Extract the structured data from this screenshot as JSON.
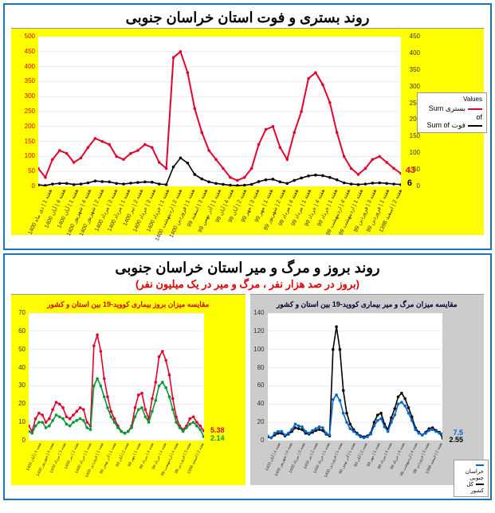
{
  "top_chart": {
    "title": "روند بستری و فوت استان خراسان جنوبی",
    "type": "line",
    "background_color": "#ffff00",
    "plot_bg": "#ffffff",
    "border_color": "#1a75bc",
    "grid_color": "#dddddd",
    "y_left": {
      "min": 0,
      "max": 500,
      "step": 50,
      "color": "#d00000"
    },
    "y_right": {
      "min": 0,
      "max": 450,
      "step": 50,
      "color": "#333333"
    },
    "series": {
      "hospitalized": {
        "label": "بستری Sum of",
        "color": "#e4002b",
        "end_value": 43,
        "values": [
          60,
          30,
          90,
          120,
          110,
          80,
          95,
          130,
          160,
          150,
          140,
          100,
          90,
          110,
          120,
          140,
          130,
          80,
          60,
          430,
          450,
          380,
          260,
          180,
          120,
          90,
          60,
          30,
          20,
          30,
          60,
          140,
          190,
          200,
          130,
          90,
          180,
          250,
          360,
          380,
          340,
          280,
          180,
          100,
          60,
          40,
          60,
          90,
          100,
          80,
          60,
          43
        ]
      },
      "deaths": {
        "label": "فوت Sum of",
        "color": "#000000",
        "end_value": 6,
        "values": [
          5,
          3,
          8,
          10,
          10,
          6,
          8,
          12,
          18,
          16,
          15,
          10,
          8,
          11,
          13,
          15,
          14,
          8,
          6,
          65,
          95,
          78,
          40,
          25,
          15,
          10,
          7,
          4,
          3,
          4,
          7,
          16,
          22,
          24,
          15,
          10,
          20,
          28,
          35,
          38,
          36,
          30,
          22,
          12,
          8,
          6,
          8,
          11,
          12,
          10,
          8,
          6
        ]
      }
    },
    "x_labels": [
      "هفته 2 | اسفند 1398",
      "هفته 1 | فروردین 99",
      "هفته 3 | فروردین 99",
      "هفته 1 | اردیبهشت 99",
      "هفته 4 | اردیبهشت 99",
      "هفته 1 | خرداد 99",
      "هفته 4 | خرداد 99",
      "هفته 1 | مرداد 99",
      "هفته 4 | مرداد 99",
      "هفته 2 | شهریور 99",
      "هفته 1 | مهر 99",
      "هفته 3 | مهر 99",
      "هفته 2 | آبان 99",
      "هفته 4 | آبان 99",
      "هفته 1 | آذر بهمن 99",
      "هفته 3 | اسفند 99",
      "هفته 1 | فروردین 1400",
      "هفته 2 | اردیبهشت 1400",
      "هفته 1 | خرداد 1400",
      "هفته 3 | خرداد 1400",
      "هفته 2 | تیر 1400",
      "هفته 1 | مرداد 1400",
      "هفته 3 | مرداد 1400",
      "هفته 2 | شهریور 1400",
      "هفته 4 | شهریور 1400",
      "هفته 1 | آبان 1400",
      "هفته 4 | آبان 1400",
      "هفته 1 | دی ماه 1400"
    ],
    "legend_title": "Values"
  },
  "bottom_section": {
    "title": "روند بروز و مرگ و میر استان خراسان جنوبی",
    "subtitle": "(بروز در صد هزار نفر ، مرگ و میر در یک میلیون نفر)",
    "left_chart": {
      "type": "line",
      "small_title": "مقایسه میزان بروز بیماری کووید-19 بین استان و کشور",
      "background_color": "#ffff00",
      "y": {
        "min": 0,
        "max": 70,
        "step": 10
      },
      "series": {
        "province": {
          "label": "خراسان جنوبی",
          "color": "#e4002b",
          "end_value": 5.38,
          "values": [
            8,
            5,
            12,
            15,
            14,
            10,
            12,
            17,
            21,
            20,
            18,
            13,
            12,
            14,
            16,
            18,
            17,
            10,
            8,
            52,
            58,
            49,
            34,
            24,
            16,
            12,
            8,
            5,
            4,
            5,
            8,
            18,
            25,
            26,
            17,
            12,
            23,
            32,
            46,
            49,
            44,
            36,
            23,
            13,
            8,
            6,
            8,
            12,
            13,
            10,
            8,
            5.38
          ]
        },
        "country": {
          "label": "کل کشور",
          "color": "#009933",
          "end_value": 2.14,
          "values": [
            5,
            4,
            8,
            10,
            10,
            7,
            8,
            11,
            14,
            13,
            12,
            9,
            8,
            10,
            11,
            12,
            11,
            7,
            6,
            30,
            34,
            30,
            24,
            18,
            13,
            10,
            7,
            5,
            4,
            5,
            7,
            13,
            17,
            18,
            13,
            10,
            16,
            22,
            30,
            32,
            29,
            24,
            17,
            10,
            7,
            5,
            7,
            9,
            10,
            8,
            6,
            2.14
          ]
        }
      }
    },
    "right_chart": {
      "type": "line",
      "small_title": "مقایسه میزان مرگ و میر بیماری کووید-19 بین استان و کشور",
      "background_color": "#cccccc",
      "y": {
        "min": 0,
        "max": 140,
        "step": 20
      },
      "series": {
        "province": {
          "label": "خراسان جنوبی",
          "color": "#0066cc",
          "end_value": 7.5,
          "values": [
            5,
            3,
            8,
            10,
            10,
            6,
            8,
            12,
            18,
            16,
            15,
            10,
            8,
            11,
            13,
            15,
            14,
            8,
            6,
            45,
            50,
            44,
            30,
            20,
            13,
            10,
            7,
            4,
            3,
            4,
            7,
            16,
            22,
            24,
            15,
            10,
            20,
            28,
            40,
            42,
            38,
            30,
            22,
            12,
            8,
            6,
            8,
            11,
            12,
            10,
            8,
            7.5
          ]
        },
        "country": {
          "label": "کل کشور",
          "color": "#000000",
          "end_value": 2.55,
          "values": [
            4,
            3,
            6,
            8,
            8,
            5,
            7,
            10,
            14,
            13,
            12,
            8,
            7,
            9,
            11,
            12,
            11,
            7,
            5,
            100,
            125,
            100,
            55,
            30,
            18,
            12,
            8,
            5,
            4,
            5,
            8,
            20,
            28,
            30,
            18,
            12,
            25,
            35,
            48,
            52,
            46,
            36,
            26,
            14,
            9,
            6,
            9,
            13,
            14,
            11,
            9,
            2.55
          ]
        }
      }
    }
  }
}
